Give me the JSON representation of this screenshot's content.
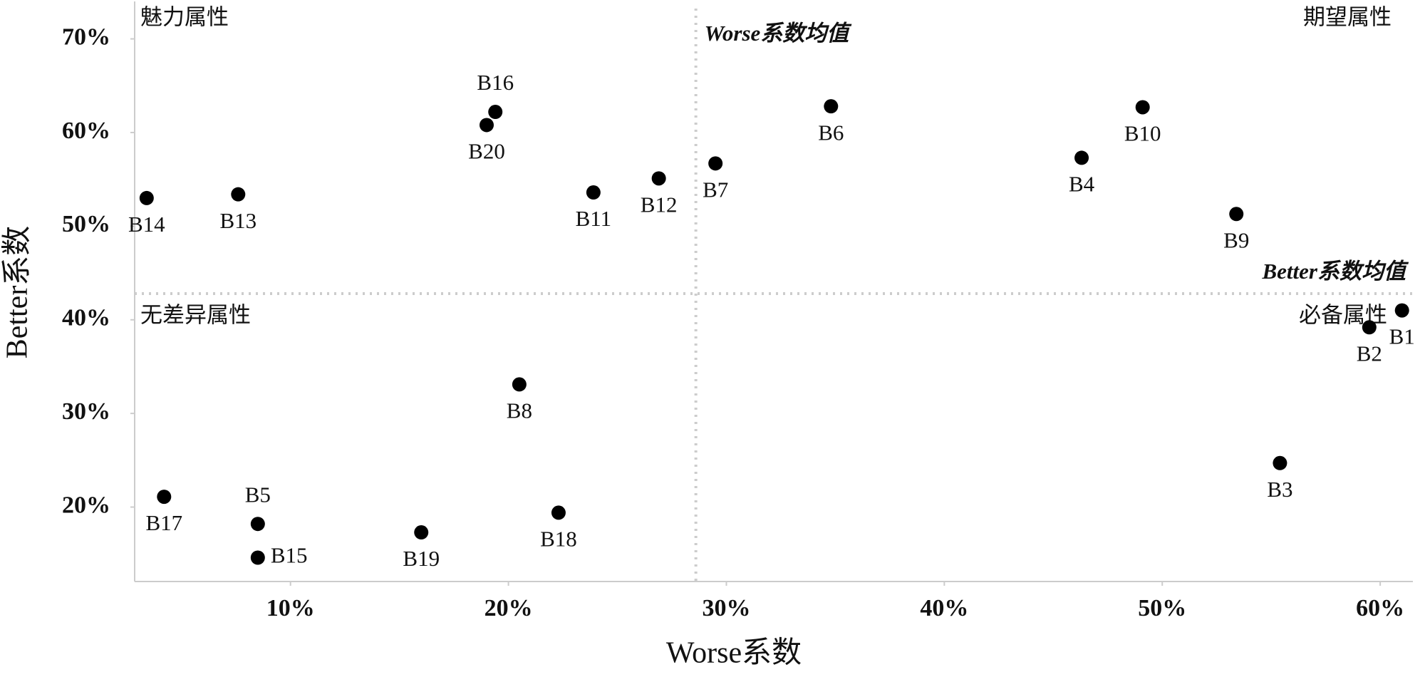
{
  "chart_data": {
    "type": "scatter",
    "x_label": "Worse系数",
    "y_label": "Better系数",
    "labels": [
      "B1",
      "B2",
      "B3",
      "B4",
      "B5",
      "B6",
      "B7",
      "B8",
      "B9",
      "B10",
      "B11",
      "B12",
      "B13",
      "B14",
      "B15",
      "B16",
      "B17",
      "B18",
      "B19",
      "B20"
    ],
    "x": [
      61.0,
      59.5,
      55.4,
      46.3,
      8.5,
      34.8,
      29.5,
      20.5,
      53.4,
      49.1,
      23.9,
      26.9,
      7.6,
      3.4,
      8.5,
      19.4,
      4.2,
      22.3,
      16.0,
      19.0
    ],
    "values": [
      41.0,
      39.2,
      24.7,
      57.3,
      18.2,
      62.8,
      56.7,
      33.1,
      51.3,
      62.7,
      53.6,
      55.1,
      53.4,
      53.0,
      14.6,
      62.2,
      21.1,
      19.4,
      17.3,
      60.8
    ],
    "color": "#000000",
    "xlim": [
      2.85,
      61.5
    ],
    "ylim": [
      12.05,
      74
    ],
    "xticks": [
      {
        "value": 10,
        "label": "10%"
      },
      {
        "value": 20,
        "label": "20%"
      },
      {
        "value": 30,
        "label": "30%"
      },
      {
        "value": 40,
        "label": "40%"
      },
      {
        "value": 50,
        "label": "50%"
      },
      {
        "value": 60,
        "label": "60%"
      }
    ],
    "yticks": [
      {
        "value": 20,
        "label": "20%"
      },
      {
        "value": 30,
        "label": "30%"
      },
      {
        "value": 40,
        "label": "40%"
      },
      {
        "value": 50,
        "label": "50%"
      },
      {
        "value": 60,
        "label": "60%"
      },
      {
        "value": 70,
        "label": "70%"
      }
    ],
    "reference_lines": [
      {
        "axis": "x",
        "value": 28.6,
        "label": "Worse系数均值"
      },
      {
        "axis": "y",
        "value": 42.8,
        "label": "Better系数均值"
      }
    ],
    "quadrant_labels": [
      {
        "corner": "top-left",
        "text": "魅力属性"
      },
      {
        "corner": "top-right",
        "text": "期望属性"
      },
      {
        "corner": "bottom-left",
        "text": "无差异属性"
      },
      {
        "corner": "bottom-right",
        "text": "必备属性"
      }
    ]
  }
}
